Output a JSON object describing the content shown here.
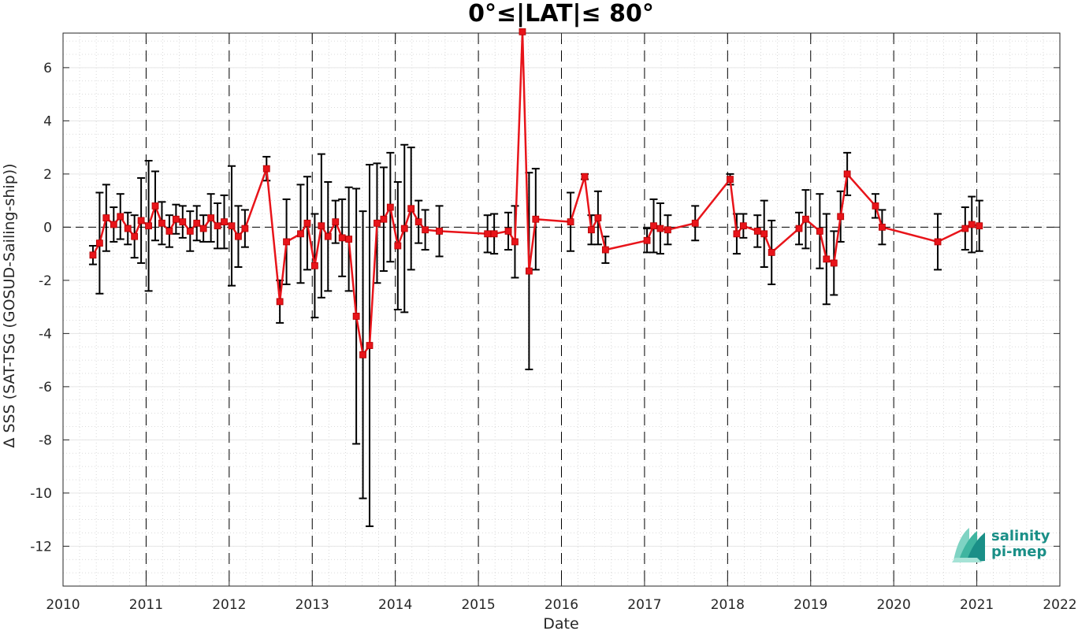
{
  "chart_data": {
    "type": "line",
    "title": "0°≤|LAT|≤ 80°",
    "xlabel": "Date",
    "ylabel": "Δ SSS (SAT-TSG (GOSUD-Sailing-ship))",
    "xlim": [
      2010,
      2022
    ],
    "ylim": [
      -13.5,
      7.3
    ],
    "x_ticks": [
      2010,
      2011,
      2012,
      2013,
      2014,
      2015,
      2016,
      2017,
      2018,
      2019,
      2020,
      2021,
      2022
    ],
    "x_tick_labels": [
      "2010",
      "2011",
      "2012",
      "2013",
      "2014",
      "2015",
      "2016",
      "2017",
      "2018",
      "2019",
      "2020",
      "2021",
      "2022"
    ],
    "y_ticks": [
      -12,
      -10,
      -8,
      -6,
      -4,
      -2,
      0,
      2,
      4,
      6
    ],
    "y_tick_labels": [
      "-12",
      "-10",
      "-8",
      "-6",
      "-4",
      "-2",
      "0",
      "2",
      "4",
      "6"
    ],
    "year_markers": [
      2011,
      2012,
      2013,
      2014,
      2015,
      2016,
      2017,
      2018,
      2019,
      2020,
      2021
    ],
    "zero_line": 0,
    "grid": "dotted minor",
    "series": [
      {
        "marker": "square",
        "line_color": "#e8141a",
        "errorbar_color": "#000000",
        "points": [
          {
            "x": 2010.36,
            "y": -1.05,
            "err": 0.35
          },
          {
            "x": 2010.44,
            "y": -0.6,
            "err": 1.9
          },
          {
            "x": 2010.52,
            "y": 0.35,
            "err": 1.25
          },
          {
            "x": 2010.61,
            "y": 0.1,
            "err": 0.65
          },
          {
            "x": 2010.69,
            "y": 0.4,
            "err": 0.85
          },
          {
            "x": 2010.78,
            "y": -0.05,
            "err": 0.6
          },
          {
            "x": 2010.86,
            "y": -0.35,
            "err": 0.8
          },
          {
            "x": 2010.94,
            "y": 0.25,
            "err": 1.6
          },
          {
            "x": 2011.03,
            "y": 0.05,
            "err": 2.45
          },
          {
            "x": 2011.11,
            "y": 0.8,
            "err": 1.3
          },
          {
            "x": 2011.19,
            "y": 0.15,
            "err": 0.8
          },
          {
            "x": 2011.28,
            "y": -0.15,
            "err": 0.6
          },
          {
            "x": 2011.36,
            "y": 0.3,
            "err": 0.55
          },
          {
            "x": 2011.44,
            "y": 0.2,
            "err": 0.6
          },
          {
            "x": 2011.53,
            "y": -0.15,
            "err": 0.75
          },
          {
            "x": 2011.61,
            "y": 0.15,
            "err": 0.65
          },
          {
            "x": 2011.69,
            "y": -0.05,
            "err": 0.5
          },
          {
            "x": 2011.78,
            "y": 0.35,
            "err": 0.9
          },
          {
            "x": 2011.86,
            "y": 0.05,
            "err": 0.85
          },
          {
            "x": 2011.94,
            "y": 0.2,
            "err": 1.0
          },
          {
            "x": 2012.03,
            "y": 0.05,
            "err": 2.25
          },
          {
            "x": 2012.11,
            "y": -0.35,
            "err": 1.15
          },
          {
            "x": 2012.19,
            "y": -0.05,
            "err": 0.7
          },
          {
            "x": 2012.45,
            "y": 2.2,
            "err": 0.45
          },
          {
            "x": 2012.61,
            "y": -2.8,
            "err": 0.8
          },
          {
            "x": 2012.69,
            "y": -0.55,
            "err": 1.6
          },
          {
            "x": 2012.86,
            "y": -0.25,
            "err": 1.85
          },
          {
            "x": 2012.94,
            "y": 0.15,
            "err": 1.75
          },
          {
            "x": 2013.03,
            "y": -1.45,
            "err": 1.95
          },
          {
            "x": 2013.11,
            "y": 0.05,
            "err": 2.7
          },
          {
            "x": 2013.19,
            "y": -0.35,
            "err": 2.05
          },
          {
            "x": 2013.28,
            "y": 0.2,
            "err": 0.8
          },
          {
            "x": 2013.36,
            "y": -0.4,
            "err": 1.45
          },
          {
            "x": 2013.44,
            "y": -0.45,
            "err": 1.95
          },
          {
            "x": 2013.53,
            "y": -3.35,
            "err": 4.8
          },
          {
            "x": 2013.61,
            "y": -4.8,
            "err": 5.4
          },
          {
            "x": 2013.69,
            "y": -4.45,
            "err": 6.8
          },
          {
            "x": 2013.78,
            "y": 0.15,
            "err": 2.25
          },
          {
            "x": 2013.86,
            "y": 0.3,
            "err": 1.95
          },
          {
            "x": 2013.94,
            "y": 0.75,
            "err": 2.05
          },
          {
            "x": 2014.03,
            "y": -0.7,
            "err": 2.4
          },
          {
            "x": 2014.11,
            "y": -0.05,
            "err": 3.15
          },
          {
            "x": 2014.19,
            "y": 0.7,
            "err": 2.3
          },
          {
            "x": 2014.28,
            "y": 0.2,
            "err": 0.8
          },
          {
            "x": 2014.36,
            "y": -0.1,
            "err": 0.75
          },
          {
            "x": 2014.53,
            "y": -0.15,
            "err": 0.95
          },
          {
            "x": 2015.11,
            "y": -0.25,
            "err": 0.7
          },
          {
            "x": 2015.19,
            "y": -0.25,
            "err": 0.75
          },
          {
            "x": 2015.36,
            "y": -0.15,
            "err": 0.7
          },
          {
            "x": 2015.44,
            "y": -0.55,
            "err": 1.35
          },
          {
            "x": 2015.53,
            "y": 7.35,
            "err": 0.0
          },
          {
            "x": 2015.61,
            "y": -1.65,
            "err": 3.7
          },
          {
            "x": 2015.69,
            "y": 0.3,
            "err": 1.9
          },
          {
            "x": 2016.11,
            "y": 0.2,
            "err": 1.1
          },
          {
            "x": 2016.28,
            "y": 1.9,
            "err": 0.1
          },
          {
            "x": 2016.36,
            "y": -0.1,
            "err": 0.55
          },
          {
            "x": 2016.44,
            "y": 0.35,
            "err": 1.0
          },
          {
            "x": 2016.53,
            "y": -0.85,
            "err": 0.5
          },
          {
            "x": 2017.03,
            "y": -0.5,
            "err": 0.45
          },
          {
            "x": 2017.11,
            "y": 0.05,
            "err": 1.0
          },
          {
            "x": 2017.19,
            "y": -0.05,
            "err": 0.95
          },
          {
            "x": 2017.28,
            "y": -0.1,
            "err": 0.55
          },
          {
            "x": 2017.61,
            "y": 0.15,
            "err": 0.65
          },
          {
            "x": 2018.03,
            "y": 1.8,
            "err": 0.2
          },
          {
            "x": 2018.11,
            "y": -0.25,
            "err": 0.75
          },
          {
            "x": 2018.19,
            "y": 0.05,
            "err": 0.45
          },
          {
            "x": 2018.36,
            "y": -0.15,
            "err": 0.6
          },
          {
            "x": 2018.44,
            "y": -0.25,
            "err": 1.25
          },
          {
            "x": 2018.53,
            "y": -0.95,
            "err": 1.2
          },
          {
            "x": 2018.86,
            "y": -0.05,
            "err": 0.6
          },
          {
            "x": 2018.94,
            "y": 0.3,
            "err": 1.1
          },
          {
            "x": 2019.11,
            "y": -0.15,
            "err": 1.4
          },
          {
            "x": 2019.19,
            "y": -1.2,
            "err": 1.7
          },
          {
            "x": 2019.28,
            "y": -1.35,
            "err": 1.2
          },
          {
            "x": 2019.36,
            "y": 0.4,
            "err": 0.95
          },
          {
            "x": 2019.44,
            "y": 2.0,
            "err": 0.8
          },
          {
            "x": 2019.78,
            "y": 0.8,
            "err": 0.45
          },
          {
            "x": 2019.86,
            "y": 0.0,
            "err": 0.65
          },
          {
            "x": 2020.53,
            "y": -0.55,
            "err": 1.05
          },
          {
            "x": 2020.86,
            "y": -0.05,
            "err": 0.8
          },
          {
            "x": 2020.94,
            "y": 0.1,
            "err": 1.05
          },
          {
            "x": 2021.03,
            "y": 0.05,
            "err": 0.95
          }
        ]
      }
    ]
  },
  "logo": {
    "line1": "salinity",
    "line2": "pi-mep",
    "color": "#1a8f87"
  }
}
